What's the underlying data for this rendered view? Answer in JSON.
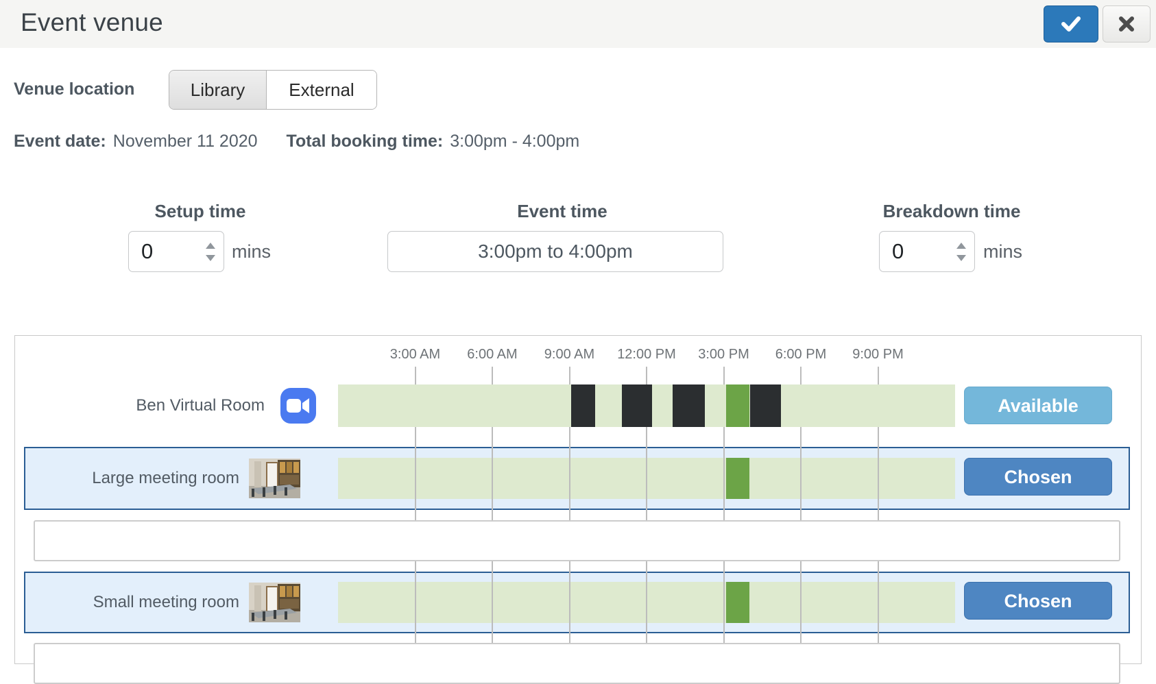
{
  "header": {
    "title": "Event venue"
  },
  "venue_location": {
    "label": "Venue location",
    "options": [
      {
        "label": "Library",
        "selected": true
      },
      {
        "label": "External",
        "selected": false
      }
    ]
  },
  "event_info": {
    "date_label": "Event date:",
    "date_value": "November 11 2020",
    "booking_label": "Total booking time:",
    "booking_value": "3:00pm - 4:00pm"
  },
  "time_settings": {
    "setup": {
      "heading": "Setup time",
      "value": "0",
      "unit": "mins"
    },
    "event": {
      "heading": "Event time",
      "value": "3:00pm to 4:00pm"
    },
    "breakdown": {
      "heading": "Breakdown time",
      "value": "0",
      "unit": "mins"
    }
  },
  "schedule": {
    "time_labels": [
      "3:00 AM",
      "6:00 AM",
      "9:00 AM",
      "12:00 PM",
      "3:00 PM",
      "6:00 PM",
      "9:00 PM"
    ],
    "axis": {
      "start": "12:00 AM",
      "end": "12:00 AM",
      "gridline_interval_hours": 3
    },
    "rows": [
      {
        "name": "Ben Virtual Room",
        "room_type": "virtual-zoom-room",
        "status": "Available",
        "chosen": false,
        "busy_blocks": [
          {
            "time_approx": "9:00 AM - 10:00 AM",
            "left_pct": 37.8,
            "width_pct": 3.9
          },
          {
            "time_approx": "11:00 AM - 12:00 PM",
            "left_pct": 46.0,
            "width_pct": 4.9
          },
          {
            "time_approx": "1:00 PM - 2:00 PM",
            "left_pct": 54.2,
            "width_pct": 5.2
          },
          {
            "time_approx": "4:00 PM - 5:00 PM",
            "left_pct": 66.8,
            "width_pct": 5.0
          }
        ],
        "event_block": {
          "time_approx": "3:00 PM - 4:00 PM",
          "left_pct": 62.9,
          "width_pct": 3.8
        }
      },
      {
        "name": "Large meeting room",
        "room_type": "physical-room",
        "status": "Chosen",
        "chosen": true,
        "busy_blocks": [],
        "event_block": {
          "time_approx": "3:00 PM - 4:00 PM",
          "left_pct": 62.9,
          "width_pct": 3.8
        }
      },
      {
        "name": "Small meeting room",
        "room_type": "physical-room",
        "status": "Chosen",
        "chosen": true,
        "busy_blocks": [],
        "event_block": {
          "time_approx": "3:00 PM - 4:00 PM",
          "left_pct": 62.9,
          "width_pct": 3.8
        }
      }
    ]
  },
  "colors": {
    "accent_blue": "#2c79ba",
    "available_blue": "#74b7da",
    "chosen_blue": "#4e86c2",
    "chosen_row_bg": "#e3effb",
    "chosen_row_border": "#2a5d94",
    "free_green": "#deeacf",
    "event_green": "#6ca447",
    "busy_dark": "#2b2e30",
    "header_bg": "#f5f5f3"
  }
}
